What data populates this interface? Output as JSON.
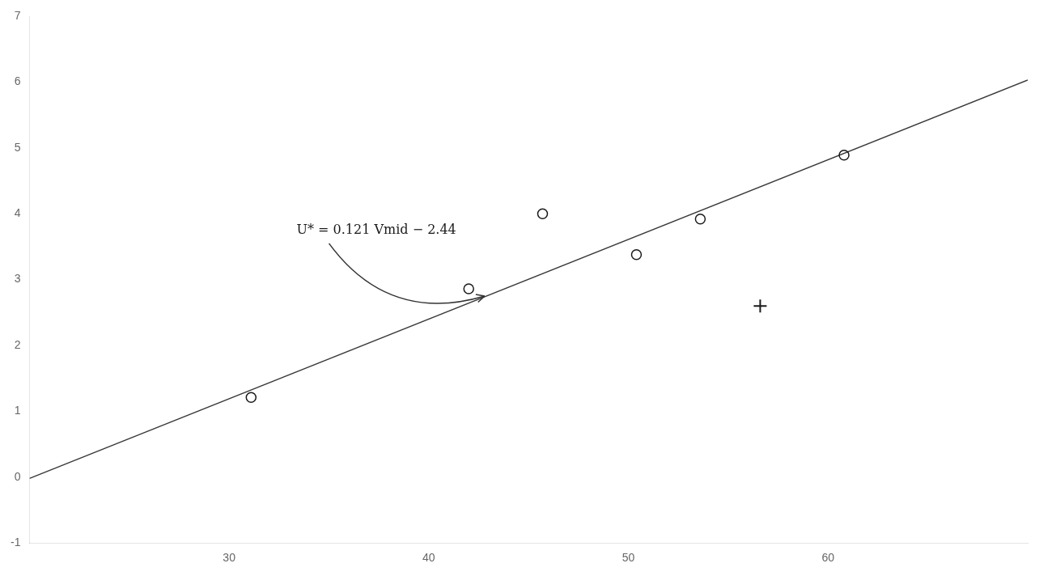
{
  "chart_data": {
    "type": "scatter",
    "series": [
      {
        "type": "line",
        "color": "#3a3a3a",
        "line_style": "solid",
        "marker": "none",
        "x": [
          20,
          70
        ],
        "values": [
          -0.02,
          6.03
        ]
      },
      {
        "type": "scatter",
        "color": "#1a1a1a",
        "marker": "open_circle",
        "x": [
          31.1,
          42.0,
          45.7,
          50.4,
          53.6,
          60.8
        ],
        "values": [
          1.21,
          2.86,
          4.0,
          3.38,
          3.92,
          4.89
        ]
      },
      {
        "type": "scatter",
        "color": "#1a1a1a",
        "marker": "plus",
        "x": [
          56.6
        ],
        "values": [
          2.6
        ]
      }
    ],
    "annotations": [
      {
        "text": "U* = 0.121 Vmid − 2.44",
        "arrow_from": [
          35.0,
          3.55
        ],
        "arrow_to": [
          42.8,
          2.75
        ]
      }
    ],
    "xlim": [
      20,
      70
    ],
    "ylim": [
      -1,
      7
    ],
    "xticks": [
      30,
      40,
      50,
      60
    ],
    "yticks": [
      -1,
      0,
      1,
      2,
      3,
      4,
      5,
      6,
      7
    ],
    "grid": false,
    "tick_labels": true
  }
}
